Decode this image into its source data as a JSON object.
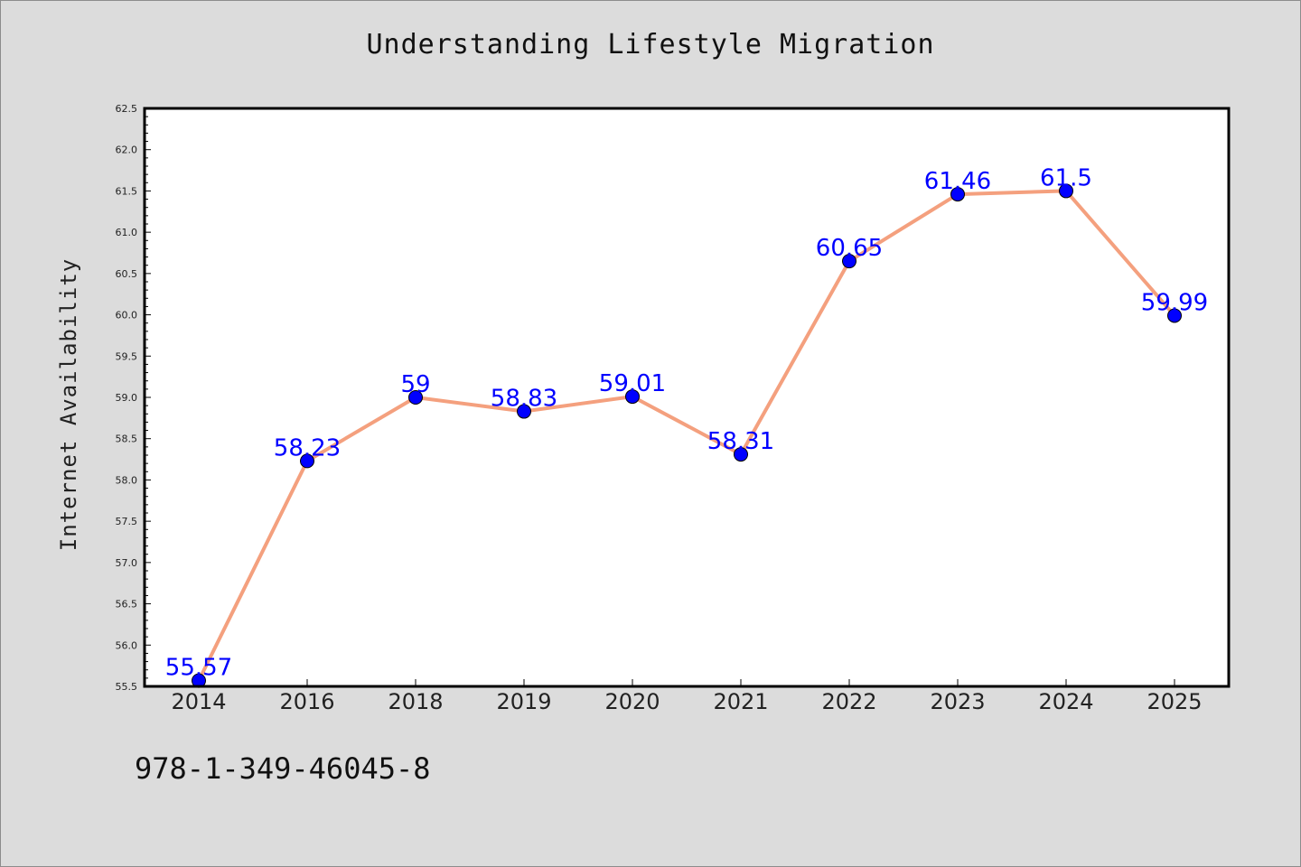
{
  "chart_data": {
    "type": "line",
    "title": "Understanding Lifestyle Migration",
    "xlabel": "",
    "ylabel": "Internet Availability",
    "categories": [
      "2014",
      "2016",
      "2018",
      "2019",
      "2020",
      "2021",
      "2022",
      "2023",
      "2024",
      "2025"
    ],
    "values": [
      55.57,
      58.23,
      59,
      58.83,
      59.01,
      58.31,
      60.65,
      61.46,
      61.5,
      59.99
    ],
    "data_labels": [
      "55.57",
      "58.23",
      "59",
      "58.83",
      "59.01",
      "58.31",
      "60.65",
      "61.46",
      "61.5",
      "59.99"
    ],
    "ylim": [
      55.5,
      62.5
    ],
    "yticks": [
      "55.5",
      "56.0",
      "56.5",
      "57.0",
      "57.5",
      "58.0",
      "58.5",
      "59.0",
      "59.5",
      "60.0",
      "60.5",
      "61.0",
      "61.5",
      "62.0",
      "62.5"
    ],
    "grid": false,
    "colors": {
      "line": "#f4a07e",
      "marker": "#0000ff",
      "label": "#0000ff",
      "background": "#dcdcdc",
      "plot_background": "#ffffff"
    }
  },
  "footer": {
    "isbn": "978-1-349-46045-8"
  }
}
